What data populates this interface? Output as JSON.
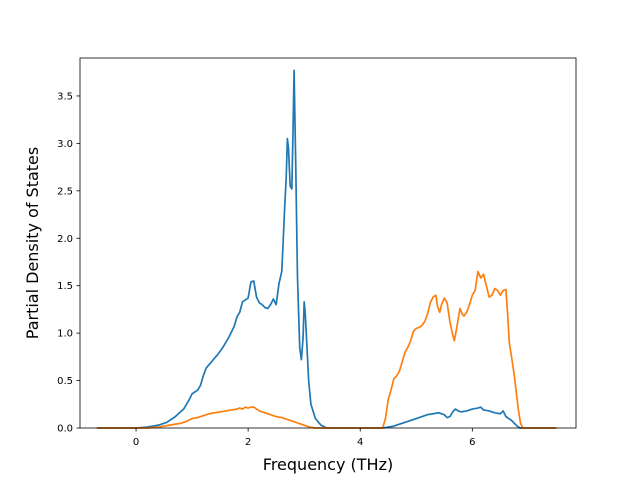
{
  "chart_data": {
    "type": "line",
    "title": "",
    "xlabel": "Frequency (THz)",
    "ylabel": "Partial Density of States",
    "xlim": [
      -1.0,
      7.85
    ],
    "ylim": [
      0,
      3.9
    ],
    "xticks": [
      0,
      2,
      4,
      6
    ],
    "xtick_labels": [
      "0",
      "2",
      "4",
      "6"
    ],
    "yticks": [
      0.0,
      0.5,
      1.0,
      1.5,
      2.0,
      2.5,
      3.0,
      3.5
    ],
    "ytick_labels": [
      "0.0",
      "0.5",
      "1.0",
      "1.5",
      "2.0",
      "2.5",
      "3.0",
      "3.5"
    ],
    "grid": false,
    "series": [
      {
        "color": "#1f77b4",
        "points": [
          [
            -0.7,
            0.0
          ],
          [
            0.0,
            0.0
          ],
          [
            0.2,
            0.01
          ],
          [
            0.4,
            0.03
          ],
          [
            0.55,
            0.06
          ],
          [
            0.7,
            0.12
          ],
          [
            0.85,
            0.2
          ],
          [
            0.95,
            0.3
          ],
          [
            1.0,
            0.36
          ],
          [
            1.1,
            0.4
          ],
          [
            1.15,
            0.45
          ],
          [
            1.2,
            0.55
          ],
          [
            1.25,
            0.63
          ],
          [
            1.35,
            0.7
          ],
          [
            1.45,
            0.77
          ],
          [
            1.55,
            0.85
          ],
          [
            1.65,
            0.95
          ],
          [
            1.75,
            1.07
          ],
          [
            1.8,
            1.17
          ],
          [
            1.85,
            1.22
          ],
          [
            1.9,
            1.33
          ],
          [
            1.95,
            1.35
          ],
          [
            2.0,
            1.37
          ],
          [
            2.05,
            1.54
          ],
          [
            2.1,
            1.55
          ],
          [
            2.15,
            1.38
          ],
          [
            2.2,
            1.32
          ],
          [
            2.25,
            1.3
          ],
          [
            2.3,
            1.27
          ],
          [
            2.35,
            1.26
          ],
          [
            2.4,
            1.3
          ],
          [
            2.45,
            1.36
          ],
          [
            2.5,
            1.3
          ],
          [
            2.55,
            1.52
          ],
          [
            2.6,
            1.65
          ],
          [
            2.62,
            1.9
          ],
          [
            2.65,
            2.3
          ],
          [
            2.68,
            2.65
          ],
          [
            2.7,
            3.05
          ],
          [
            2.72,
            2.95
          ],
          [
            2.75,
            2.55
          ],
          [
            2.78,
            2.52
          ],
          [
            2.8,
            3.1
          ],
          [
            2.82,
            3.77
          ],
          [
            2.85,
            2.75
          ],
          [
            2.88,
            1.6
          ],
          [
            2.92,
            0.85
          ],
          [
            2.95,
            0.72
          ],
          [
            2.98,
            0.95
          ],
          [
            3.0,
            1.33
          ],
          [
            3.02,
            1.2
          ],
          [
            3.05,
            0.85
          ],
          [
            3.08,
            0.5
          ],
          [
            3.12,
            0.25
          ],
          [
            3.2,
            0.1
          ],
          [
            3.3,
            0.03
          ],
          [
            3.4,
            0.0
          ],
          [
            4.4,
            0.0
          ],
          [
            4.6,
            0.02
          ],
          [
            4.8,
            0.06
          ],
          [
            5.0,
            0.1
          ],
          [
            5.2,
            0.14
          ],
          [
            5.3,
            0.15
          ],
          [
            5.4,
            0.16
          ],
          [
            5.5,
            0.14
          ],
          [
            5.55,
            0.11
          ],
          [
            5.6,
            0.12
          ],
          [
            5.65,
            0.17
          ],
          [
            5.7,
            0.2
          ],
          [
            5.75,
            0.18
          ],
          [
            5.8,
            0.17
          ],
          [
            5.9,
            0.18
          ],
          [
            6.0,
            0.2
          ],
          [
            6.1,
            0.21
          ],
          [
            6.15,
            0.22
          ],
          [
            6.2,
            0.19
          ],
          [
            6.3,
            0.18
          ],
          [
            6.4,
            0.16
          ],
          [
            6.5,
            0.15
          ],
          [
            6.55,
            0.18
          ],
          [
            6.6,
            0.12
          ],
          [
            6.7,
            0.08
          ],
          [
            6.8,
            0.02
          ],
          [
            6.85,
            0.0
          ],
          [
            7.5,
            0.0
          ]
        ]
      },
      {
        "color": "#ff7f0e",
        "points": [
          [
            -0.7,
            0.0
          ],
          [
            0.0,
            0.0
          ],
          [
            0.2,
            0.0
          ],
          [
            0.4,
            0.01
          ],
          [
            0.6,
            0.03
          ],
          [
            0.8,
            0.05
          ],
          [
            0.9,
            0.07
          ],
          [
            1.0,
            0.1
          ],
          [
            1.1,
            0.11
          ],
          [
            1.2,
            0.13
          ],
          [
            1.3,
            0.15
          ],
          [
            1.4,
            0.16
          ],
          [
            1.5,
            0.17
          ],
          [
            1.6,
            0.18
          ],
          [
            1.7,
            0.19
          ],
          [
            1.8,
            0.2
          ],
          [
            1.85,
            0.21
          ],
          [
            1.9,
            0.2
          ],
          [
            1.95,
            0.22
          ],
          [
            2.0,
            0.21
          ],
          [
            2.05,
            0.22
          ],
          [
            2.1,
            0.22
          ],
          [
            2.15,
            0.2
          ],
          [
            2.2,
            0.18
          ],
          [
            2.3,
            0.16
          ],
          [
            2.4,
            0.14
          ],
          [
            2.5,
            0.12
          ],
          [
            2.6,
            0.11
          ],
          [
            2.7,
            0.09
          ],
          [
            2.8,
            0.07
          ],
          [
            2.9,
            0.05
          ],
          [
            3.0,
            0.03
          ],
          [
            3.1,
            0.01
          ],
          [
            3.2,
            0.0
          ],
          [
            4.4,
            0.0
          ],
          [
            4.45,
            0.1
          ],
          [
            4.5,
            0.3
          ],
          [
            4.55,
            0.4
          ],
          [
            4.6,
            0.52
          ],
          [
            4.65,
            0.55
          ],
          [
            4.7,
            0.6
          ],
          [
            4.75,
            0.7
          ],
          [
            4.8,
            0.8
          ],
          [
            4.85,
            0.85
          ],
          [
            4.9,
            0.92
          ],
          [
            4.95,
            1.02
          ],
          [
            5.0,
            1.05
          ],
          [
            5.05,
            1.06
          ],
          [
            5.1,
            1.08
          ],
          [
            5.15,
            1.12
          ],
          [
            5.2,
            1.2
          ],
          [
            5.25,
            1.32
          ],
          [
            5.3,
            1.38
          ],
          [
            5.35,
            1.4
          ],
          [
            5.38,
            1.28
          ],
          [
            5.42,
            1.22
          ],
          [
            5.45,
            1.3
          ],
          [
            5.5,
            1.37
          ],
          [
            5.55,
            1.32
          ],
          [
            5.6,
            1.12
          ],
          [
            5.65,
            0.98
          ],
          [
            5.68,
            0.92
          ],
          [
            5.72,
            1.05
          ],
          [
            5.78,
            1.26
          ],
          [
            5.82,
            1.2
          ],
          [
            5.85,
            1.18
          ],
          [
            5.9,
            1.22
          ],
          [
            5.95,
            1.3
          ],
          [
            6.0,
            1.4
          ],
          [
            6.05,
            1.45
          ],
          [
            6.1,
            1.65
          ],
          [
            6.15,
            1.58
          ],
          [
            6.2,
            1.62
          ],
          [
            6.25,
            1.5
          ],
          [
            6.3,
            1.38
          ],
          [
            6.35,
            1.4
          ],
          [
            6.4,
            1.47
          ],
          [
            6.45,
            1.45
          ],
          [
            6.5,
            1.4
          ],
          [
            6.55,
            1.45
          ],
          [
            6.6,
            1.46
          ],
          [
            6.63,
            1.2
          ],
          [
            6.66,
            0.9
          ],
          [
            6.7,
            0.75
          ],
          [
            6.75,
            0.55
          ],
          [
            6.78,
            0.4
          ],
          [
            6.82,
            0.2
          ],
          [
            6.86,
            0.05
          ],
          [
            6.9,
            0.0
          ],
          [
            7.5,
            0.0
          ]
        ]
      }
    ]
  }
}
